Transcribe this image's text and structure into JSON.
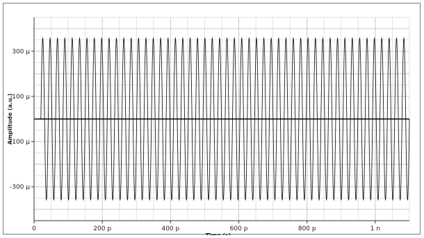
{
  "chart_data": {
    "type": "line",
    "xlabel": "Time (s)",
    "ylabel": "Amplitude (a.u.)",
    "x_ticks": [
      {
        "value": 0,
        "label": "0"
      },
      {
        "value": 200,
        "label": "200 p"
      },
      {
        "value": 400,
        "label": "400 p"
      },
      {
        "value": 600,
        "label": "600 p"
      },
      {
        "value": 800,
        "label": "800 p"
      },
      {
        "value": 1000,
        "label": "1 n"
      }
    ],
    "y_ticks": [
      {
        "value": 300,
        "label": "300 µ"
      },
      {
        "value": 100,
        "label": "100 µ"
      },
      {
        "value": -100,
        "label": "-100 µ"
      },
      {
        "value": -300,
        "label": "-300 µ"
      }
    ],
    "x_unit": "ps",
    "y_unit": "µ (a.u.)",
    "xlim": [
      0,
      1100
    ],
    "ylim": [
      -450,
      450
    ],
    "grid": true,
    "series": [
      {
        "signal": "sinusoid",
        "amplitude": 360,
        "offset": 0,
        "period": 21.6,
        "phase_deg": 0,
        "x_range": [
          20,
          1100
        ],
        "color": "#1a1a1a"
      }
    ],
    "baseline_marker": {
      "y": 0,
      "color": "#000000"
    }
  }
}
